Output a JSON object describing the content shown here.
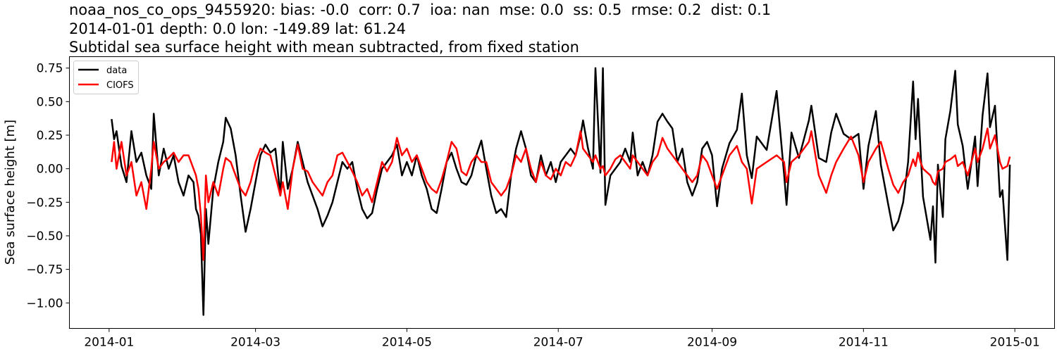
{
  "chart_data": {
    "type": "line",
    "title_lines": [
      "noaa_nos_co_ops_9455920: bias: -0.0  corr: 0.7  ioa: nan  mse: 0.0  ss: 0.5  rmse: 0.2  dist: 0.1",
      "2014-01-01 depth: 0.0 lon: -149.89 lat: 61.24",
      "Subtidal sea surface height with mean subtracted, from fixed station"
    ],
    "xlabel": "",
    "ylabel": "Sea surface height [m]",
    "xlim": [
      "2013-12-16",
      "2015-01-17"
    ],
    "ylim": [
      -1.19,
      0.835
    ],
    "x_ticks": [
      "2014-01",
      "2014-03",
      "2014-05",
      "2014-07",
      "2014-09",
      "2014-11",
      "2015-01"
    ],
    "y_ticks": [
      0.75,
      0.5,
      0.25,
      0.0,
      -0.25,
      -0.5,
      -0.75,
      -1.0
    ],
    "y_tick_labels": [
      "0.75",
      "0.50",
      "0.25",
      "0.00",
      "−0.25",
      "−0.50",
      "−0.75",
      "−1.00"
    ],
    "grid": false,
    "legend_placement": "upper-left",
    "x": [
      "2014-01-02",
      "2014-01-03",
      "2014-01-04",
      "2014-01-06",
      "2014-01-08",
      "2014-01-10",
      "2014-01-12",
      "2014-01-14",
      "2014-01-16",
      "2014-01-18",
      "2014-01-19",
      "2014-01-21",
      "2014-01-23",
      "2014-01-25",
      "2014-01-27",
      "2014-01-29",
      "2014-01-31",
      "2014-02-02",
      "2014-02-04",
      "2014-02-05",
      "2014-02-06",
      "2014-02-07",
      "2014-02-08",
      "2014-02-09",
      "2014-02-10",
      "2014-02-12",
      "2014-02-14",
      "2014-02-16",
      "2014-02-17",
      "2014-02-19",
      "2014-02-21",
      "2014-02-23",
      "2014-02-25",
      "2014-02-27",
      "2014-03-01",
      "2014-03-03",
      "2014-03-05",
      "2014-03-07",
      "2014-03-09",
      "2014-03-11",
      "2014-03-12",
      "2014-03-14",
      "2014-03-16",
      "2014-03-18",
      "2014-03-20",
      "2014-03-22",
      "2014-03-24",
      "2014-03-26",
      "2014-03-28",
      "2014-03-30",
      "2014-04-01",
      "2014-04-03",
      "2014-04-05",
      "2014-04-07",
      "2014-04-09",
      "2014-04-11",
      "2014-04-13",
      "2014-04-15",
      "2014-04-17",
      "2014-04-19",
      "2014-04-21",
      "2014-04-23",
      "2014-04-25",
      "2014-04-27",
      "2014-04-29",
      "2014-05-01",
      "2014-05-03",
      "2014-05-05",
      "2014-05-07",
      "2014-05-09",
      "2014-05-11",
      "2014-05-13",
      "2014-05-15",
      "2014-05-17",
      "2014-05-19",
      "2014-05-21",
      "2014-05-23",
      "2014-05-25",
      "2014-05-27",
      "2014-05-29",
      "2014-05-31",
      "2014-06-02",
      "2014-06-04",
      "2014-06-06",
      "2014-06-08",
      "2014-06-10",
      "2014-06-12",
      "2014-06-14",
      "2014-06-16",
      "2014-06-18",
      "2014-06-20",
      "2014-06-22",
      "2014-06-24",
      "2014-06-26",
      "2014-06-28",
      "2014-06-30",
      "2014-07-02",
      "2014-07-04",
      "2014-07-06",
      "2014-07-08",
      "2014-07-10",
      "2014-07-11",
      "2014-07-13",
      "2014-07-15",
      "2014-07-16",
      "2014-07-18",
      "2014-07-19",
      "2014-07-20",
      "2014-07-22",
      "2014-07-24",
      "2014-07-26",
      "2014-07-28",
      "2014-07-30",
      "2014-07-31",
      "2014-08-02",
      "2014-08-04",
      "2014-08-06",
      "2014-08-08",
      "2014-08-10",
      "2014-08-12",
      "2014-08-14",
      "2014-08-16",
      "2014-08-18",
      "2014-08-20",
      "2014-08-22",
      "2014-08-24",
      "2014-08-26",
      "2014-08-28",
      "2014-08-30",
      "2014-09-01",
      "2014-09-03",
      "2014-09-05",
      "2014-09-08",
      "2014-09-11",
      "2014-09-13",
      "2014-09-15",
      "2014-09-17",
      "2014-09-19",
      "2014-09-23",
      "2014-09-27",
      "2014-09-30",
      "2014-10-01",
      "2014-10-03",
      "2014-10-06",
      "2014-10-10",
      "2014-10-11",
      "2014-10-14",
      "2014-10-17",
      "2014-10-19",
      "2014-10-21",
      "2014-10-24",
      "2014-10-27",
      "2014-10-30",
      "2014-11-01",
      "2014-11-03",
      "2014-11-06",
      "2014-11-08",
      "2014-11-11",
      "2014-11-13",
      "2014-11-15",
      "2014-11-17",
      "2014-11-19",
      "2014-11-21",
      "2014-11-22",
      "2014-11-23",
      "2014-11-24",
      "2014-11-25",
      "2014-11-28",
      "2014-11-29",
      "2014-11-30",
      "2014-12-01",
      "2014-12-03",
      "2014-12-04",
      "2014-12-06",
      "2014-12-08",
      "2014-12-09",
      "2014-12-11",
      "2014-12-13",
      "2014-12-16",
      "2014-12-17",
      "2014-12-19",
      "2014-12-21",
      "2014-12-22",
      "2014-12-24",
      "2014-12-26",
      "2014-12-27",
      "2014-12-29",
      "2014-12-30"
    ],
    "series": [
      {
        "name": "data",
        "color": "#000000",
        "values": [
          0.37,
          0.22,
          0.28,
          0.02,
          -0.1,
          0.28,
          0.05,
          0.12,
          -0.05,
          -0.15,
          0.41,
          -0.05,
          0.15,
          0.0,
          0.1,
          -0.1,
          -0.2,
          -0.05,
          -0.1,
          -0.3,
          -0.35,
          -0.49,
          -1.09,
          -0.3,
          -0.56,
          -0.15,
          0.05,
          0.2,
          0.38,
          0.3,
          0.1,
          -0.2,
          -0.47,
          -0.3,
          -0.1,
          0.1,
          0.18,
          0.12,
          0.15,
          -0.2,
          0.2,
          -0.15,
          0.0,
          0.2,
          0.05,
          -0.1,
          -0.2,
          -0.3,
          -0.43,
          -0.35,
          -0.25,
          -0.1,
          0.05,
          0.0,
          0.05,
          -0.15,
          -0.3,
          -0.37,
          -0.33,
          -0.15,
          0.0,
          0.05,
          0.1,
          0.18,
          -0.05,
          0.05,
          -0.05,
          0.1,
          -0.05,
          -0.15,
          -0.3,
          -0.33,
          -0.15,
          0.05,
          0.12,
          0.0,
          -0.1,
          -0.12,
          -0.05,
          0.1,
          0.21,
          0.0,
          -0.2,
          -0.33,
          -0.3,
          -0.36,
          -0.05,
          0.15,
          0.28,
          0.15,
          -0.05,
          -0.1,
          0.1,
          -0.05,
          0.05,
          -0.1,
          0.05,
          0.1,
          0.15,
          0.1,
          0.25,
          0.36,
          0.15,
          0.0,
          0.75,
          -0.03,
          0.75,
          -0.27,
          -0.05,
          0.0,
          0.05,
          0.15,
          0.05,
          0.27,
          -0.05,
          0.05,
          -0.05,
          0.1,
          0.35,
          0.41,
          0.35,
          0.3,
          0.05,
          0.15,
          -0.1,
          -0.2,
          -0.1,
          0.15,
          0.2,
          0.1,
          -0.28,
          0.0,
          0.19,
          0.29,
          0.56,
          0.1,
          -0.07,
          0.24,
          0.14,
          0.58,
          -0.04,
          -0.27,
          0.27,
          0.08,
          0.36,
          0.47,
          0.08,
          0.05,
          0.27,
          0.41,
          0.26,
          0.22,
          0.26,
          -0.15,
          0.17,
          0.43,
          0.03,
          -0.27,
          -0.46,
          -0.39,
          -0.25,
          0.05,
          0.65,
          0.22,
          0.52,
          0.14,
          -0.21,
          -0.53,
          -0.28,
          -0.7,
          0.03,
          -0.36,
          0.22,
          0.43,
          0.73,
          0.33,
          0.17,
          -0.15,
          0.24,
          -0.13,
          0.4,
          0.71,
          0.31,
          0.47,
          -0.21,
          -0.16,
          -0.68,
          0.03
        ]
      },
      {
        "name": "CIOFS",
        "color": "#ff0000",
        "values": [
          0.05,
          0.2,
          0.0,
          0.2,
          -0.05,
          0.05,
          -0.2,
          -0.1,
          -0.3,
          0.0,
          0.2,
          0.0,
          0.05,
          0.08,
          0.12,
          0.05,
          0.1,
          0.1,
          0.0,
          -0.05,
          -0.15,
          -0.35,
          -0.68,
          -0.05,
          -0.25,
          -0.1,
          -0.2,
          0.0,
          0.08,
          0.05,
          -0.05,
          -0.15,
          -0.2,
          -0.1,
          0.05,
          0.15,
          0.12,
          0.1,
          -0.05,
          -0.2,
          -0.1,
          -0.3,
          0.0,
          0.18,
          0.0,
          -0.02,
          -0.1,
          -0.15,
          -0.2,
          -0.1,
          -0.05,
          0.1,
          0.12,
          0.05,
          -0.02,
          -0.1,
          -0.2,
          -0.15,
          -0.25,
          -0.1,
          0.05,
          -0.02,
          0.05,
          0.23,
          0.1,
          0.15,
          0.05,
          0.1,
          0.0,
          -0.1,
          -0.15,
          -0.18,
          -0.08,
          0.05,
          0.2,
          0.15,
          -0.02,
          -0.05,
          0.05,
          0.1,
          0.05,
          0.05,
          -0.1,
          -0.15,
          -0.2,
          -0.15,
          -0.05,
          0.1,
          0.05,
          0.15,
          0.0,
          -0.1,
          0.05,
          -0.05,
          -0.08,
          0.0,
          -0.05,
          0.05,
          0.02,
          0.1,
          0.28,
          0.15,
          0.1,
          0.05,
          0.1,
          0.0,
          0.02,
          -0.05,
          0.0,
          0.07,
          0.1,
          0.05,
          0.0,
          0.1,
          0.05,
          0.0,
          -0.05,
          0.05,
          0.1,
          0.23,
          0.15,
          0.1,
          0.05,
          0.0,
          -0.05,
          -0.1,
          -0.05,
          0.1,
          0.05,
          -0.05,
          -0.15,
          -0.05,
          0.1,
          0.17,
          0.05,
          0.0,
          -0.26,
          0.0,
          0.05,
          0.1,
          0.05,
          -0.1,
          0.05,
          0.1,
          0.2,
          0.28,
          -0.05,
          -0.18,
          -0.05,
          0.05,
          0.15,
          0.24,
          0.1,
          -0.1,
          0.05,
          0.15,
          0.2,
          0.0,
          -0.12,
          -0.18,
          -0.1,
          -0.05,
          0.07,
          0.02,
          0.12,
          0.05,
          0.0,
          -0.05,
          -0.1,
          -0.12,
          -0.02,
          0.0,
          0.05,
          0.07,
          0.1,
          0.02,
          0.05,
          -0.05,
          0.15,
          0.05,
          0.15,
          0.3,
          0.15,
          0.25,
          0.05,
          0.0,
          0.02,
          0.09
        ]
      }
    ]
  }
}
